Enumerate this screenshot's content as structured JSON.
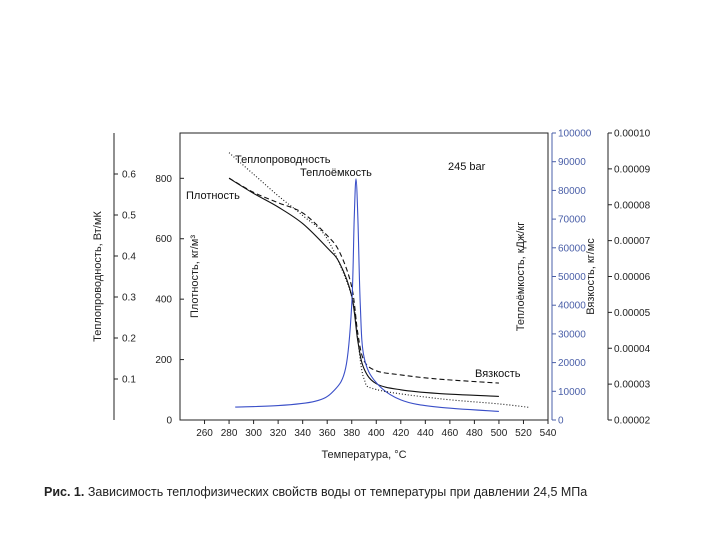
{
  "caption": {
    "prefix": "Рис. 1.",
    "text": "Зависимость теплофизических свойств воды от температуры при давлении 24,5 МПа"
  },
  "chart_data": {
    "type": "line",
    "annotation": "245 bar",
    "xlabel": "Температура, °C",
    "xlim": [
      240,
      540
    ],
    "xticks": [
      260,
      280,
      300,
      320,
      340,
      360,
      380,
      400,
      420,
      440,
      460,
      480,
      500,
      520,
      540
    ],
    "axes": {
      "conductivity": {
        "label": "Теплопроводность, Вт/мК",
        "lim": [
          0,
          0.7
        ],
        "ticks": [
          "0.1",
          "0.2",
          "0.3",
          "0.4",
          "0.5",
          "0.6"
        ],
        "tick_values": [
          0.1,
          0.2,
          0.3,
          0.4,
          0.5,
          0.6
        ]
      },
      "density": {
        "label": "Плотность, кг/м³",
        "lim": [
          0,
          950
        ],
        "ticks": [
          "0",
          "200",
          "400",
          "600",
          "800"
        ],
        "tick_values": [
          0,
          200,
          400,
          600,
          800
        ]
      },
      "heat_capacity": {
        "label": "Теплоёмкость, кДж/кг",
        "lim": [
          0,
          100000
        ],
        "ticks": [
          "0",
          "10000",
          "20000",
          "30000",
          "40000",
          "50000",
          "60000",
          "70000",
          "80000",
          "90000",
          "100000"
        ],
        "tick_values": [
          0,
          10000,
          20000,
          30000,
          40000,
          50000,
          60000,
          70000,
          80000,
          90000,
          100000
        ]
      },
      "viscosity": {
        "label": "Вязкость, кг/мс",
        "lim": [
          2e-05,
          0.0001
        ],
        "ticks": [
          "0.00002",
          "0.00003",
          "0.00004",
          "0.00005",
          "0.00006",
          "0.00007",
          "0.00008",
          "0.00009",
          "0.00010"
        ],
        "tick_values": [
          2e-05,
          3e-05,
          4e-05,
          5e-05,
          6e-05,
          7e-05,
          8e-05,
          9e-05,
          0.0001
        ]
      }
    },
    "series": [
      {
        "name": "Плотность",
        "axis": "density",
        "color": "#111111",
        "dash": "",
        "x": [
          280,
          300,
          320,
          340,
          360,
          370,
          380,
          385,
          390,
          400,
          420,
          450,
          500
        ],
        "y": [
          800,
          750,
          705,
          650,
          570,
          520,
          410,
          260,
          170,
          120,
          100,
          88,
          78
        ]
      },
      {
        "name": "Теплопроводность",
        "axis": "conductivity",
        "color": "#111111",
        "dash": "5,3",
        "x": [
          280,
          300,
          320,
          340,
          360,
          370,
          380,
          385,
          390,
          400,
          420,
          450,
          500
        ],
        "y": [
          0.59,
          0.555,
          0.53,
          0.505,
          0.45,
          0.41,
          0.325,
          0.21,
          0.145,
          0.12,
          0.11,
          0.1,
          0.09
        ]
      },
      {
        "name": "Теплоёмкость",
        "axis": "heat_capacity",
        "color": "#3a4fc8",
        "dash": "",
        "x": [
          285,
          320,
          350,
          365,
          375,
          380,
          382,
          383.5,
          385,
          387,
          390,
          400,
          420,
          450,
          500
        ],
        "y": [
          4500,
          5000,
          6500,
          10000,
          18000,
          40000,
          70000,
          84000,
          70000,
          40000,
          22000,
          13000,
          7000,
          4500,
          3000
        ]
      },
      {
        "name": "Вязкость",
        "axis": "viscosity",
        "color": "#111111",
        "dash": "1,2",
        "x": [
          280,
          300,
          320,
          340,
          360,
          380,
          385,
          390,
          400,
          450,
          500,
          525
        ],
        "y": [
          9.45e-05,
          8.85e-05,
          8.25e-05,
          7.7e-05,
          7.05e-05,
          5.45e-05,
          4.2e-05,
          3.15e-05,
          2.85e-05,
          2.6e-05,
          2.45e-05,
          2.35e-05
        ]
      }
    ],
    "labels": {
      "conductivity": "Теплопроводность",
      "heat_capacity": "Теплоёмкость",
      "density": "Плотность",
      "viscosity": "Вязкость"
    }
  }
}
